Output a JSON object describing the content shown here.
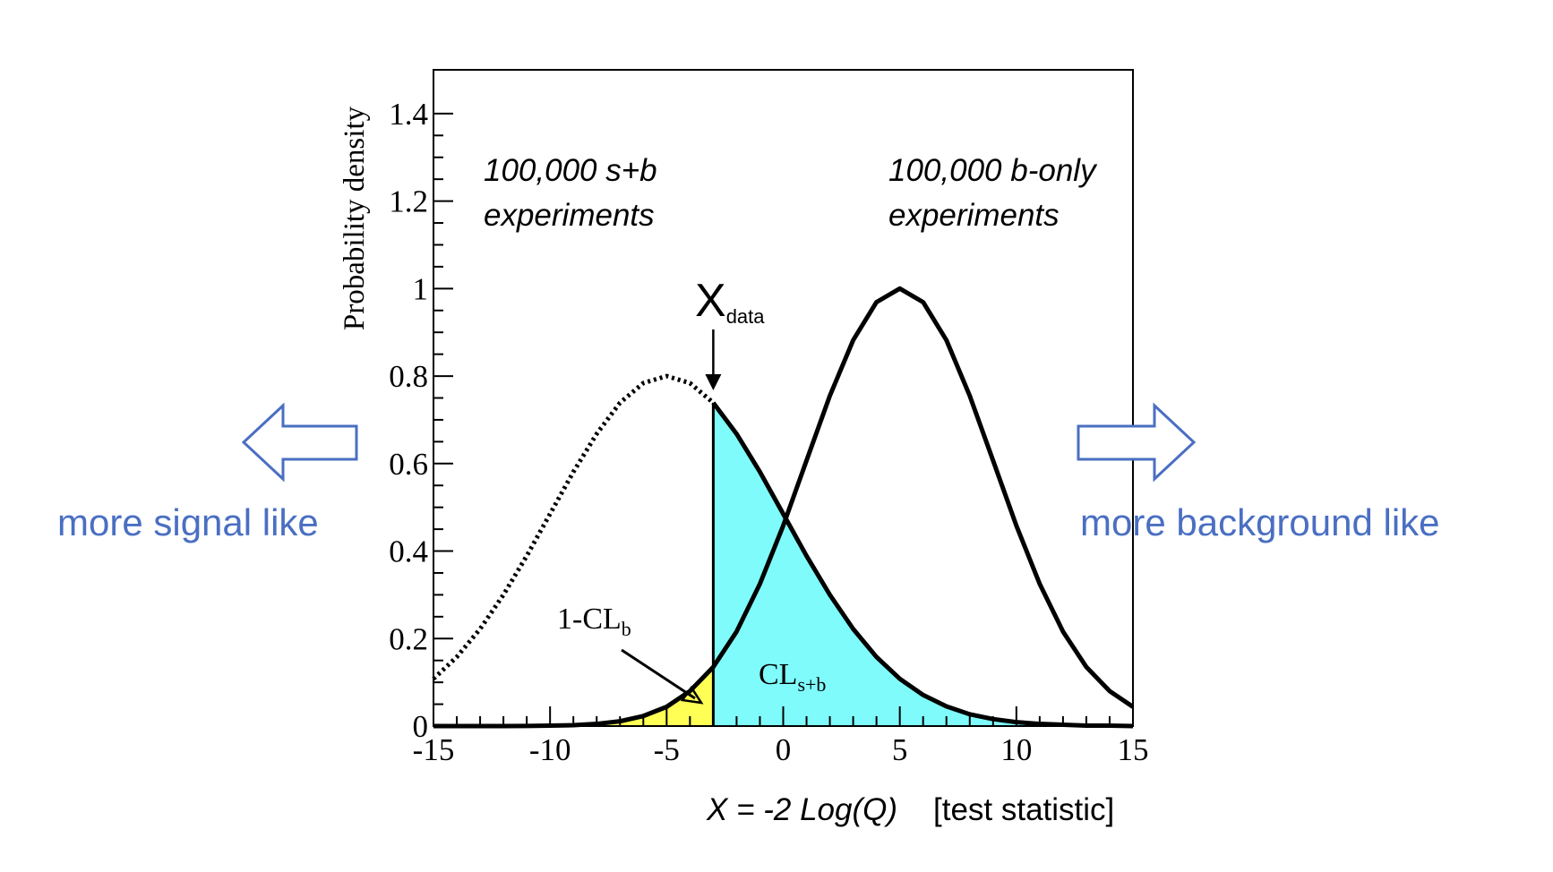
{
  "chart_data": {
    "type": "line",
    "y_label": "Probability density",
    "x_label": "X = -2 Log(Q)",
    "x_label_note": "[test statistic]",
    "annotations": {
      "sb_line1": "100,000 s+b",
      "sb_line2": "experiments",
      "b_line1": "100,000 b-only",
      "b_line2": "experiments",
      "x_data_main": "X",
      "x_data_sub": "data",
      "clb_main": "1-CL",
      "clb_sub": "b",
      "clsb_main": "CL",
      "clsb_sub": "s+b",
      "left_hint": "more signal like",
      "right_hint": "more background like"
    },
    "x_data": -3,
    "x": [
      -15,
      -14,
      -13,
      -12,
      -11,
      -10,
      -9,
      -8,
      -7,
      -6,
      -5,
      -4,
      -3,
      -2,
      -1,
      0,
      1,
      2,
      3,
      4,
      5,
      6,
      7,
      8,
      9,
      10,
      11,
      12,
      13,
      14,
      15
    ],
    "series": [
      {
        "color": "#000000",
        "fill": "#7ffbfb",
        "values": [
          0.108,
          0.158,
          0.222,
          0.3,
          0.389,
          0.485,
          0.581,
          0.668,
          0.739,
          0.784,
          0.8,
          0.784,
          0.739,
          0.668,
          0.581,
          0.485,
          0.389,
          0.3,
          0.222,
          0.158,
          0.108,
          0.071,
          0.045,
          0.027,
          0.016,
          0.009,
          0.005,
          0.003,
          0.001,
          0.001,
          0.0
        ]
      },
      {
        "color": "#000000",
        "fill": "#ffff55",
        "values": [
          0.0,
          0.0,
          0.0,
          0.0,
          0.0003,
          0.001,
          0.002,
          0.005,
          0.011,
          0.023,
          0.044,
          0.08,
          0.135,
          0.216,
          0.325,
          0.458,
          0.607,
          0.755,
          0.882,
          0.969,
          1.0,
          0.969,
          0.882,
          0.755,
          0.607,
          0.458,
          0.325,
          0.216,
          0.135,
          0.08,
          0.044
        ]
      }
    ],
    "xlim": [
      -15,
      15
    ],
    "ylim": [
      0,
      1.5
    ],
    "xticks": [
      -15,
      -10,
      -5,
      0,
      5,
      10,
      15
    ],
    "yticks": [
      0,
      0.2,
      0.4,
      0.6,
      0.8,
      1,
      1.2,
      1.4
    ],
    "hint_color": "#4a6fc2"
  }
}
